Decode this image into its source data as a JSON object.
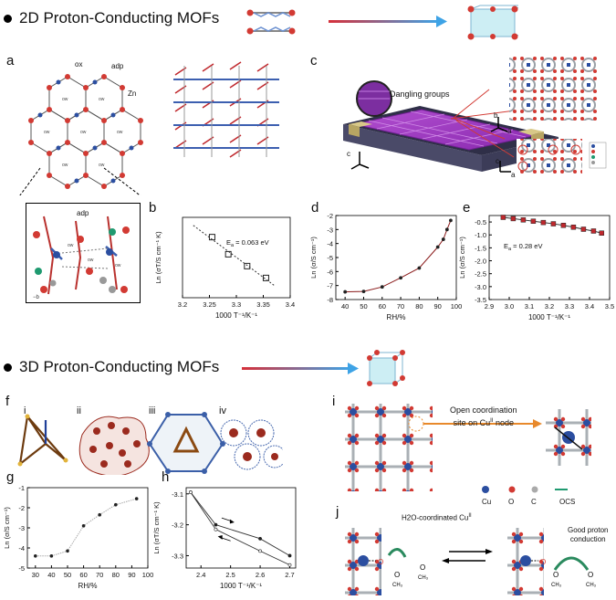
{
  "headers": {
    "h2d": "2D Proton-Conducting MOFs",
    "h3d": "3D Proton-Conducting MOFs"
  },
  "panel_labels": [
    "a",
    "b",
    "c",
    "d",
    "e",
    "f",
    "g",
    "h",
    "i",
    "j"
  ],
  "subpanel_labels_f": [
    "i",
    "ii",
    "iii",
    "iv"
  ],
  "annotations": {
    "ox": "ox",
    "adp_top": "adp",
    "zn": "Zn",
    "adp_inset": "adp",
    "dangling": "Dangling groups",
    "ocs_text_1": "Open coordination",
    "ocs_text_2": "site on Cu",
    "ocs_sup": "II",
    "ocs_text_3": " node",
    "h2o_coord": "H2O-coordinated Cu",
    "h2o_sup": "II",
    "good_1": "Good proton",
    "good_2": "conduction",
    "legend_cu": "Cu",
    "legend_o": "O",
    "legend_c": "C",
    "legend_ocs": "OCS",
    "axis_c": "c",
    "axis_a": "a",
    "axis_b": "b"
  },
  "colors": {
    "gradient_start": "#d6303a",
    "gradient_end": "#3ea3e6",
    "marker_red": "#c0282d",
    "mof_purple": "#a23cc0"
  },
  "chart_data": [
    {
      "id": "b",
      "type": "scatter",
      "x": [
        3.255,
        3.285,
        3.32,
        3.355
      ],
      "y": [
        0.68,
        0.55,
        0.46,
        0.37
      ],
      "annotation": "Ea = 0.063 eV",
      "xlabel": "1000 T⁻¹/K⁻¹",
      "ylabel": "Ln (σT/S cm⁻¹ K)",
      "xlim": [
        3.2,
        3.4
      ],
      "xticks": [
        "3.2",
        "3.25",
        "3.3",
        "3.35",
        "3.4"
      ]
    },
    {
      "id": "d",
      "type": "line",
      "x": [
        40,
        50,
        60,
        70,
        80,
        90,
        93,
        95,
        97
      ],
      "y": [
        -7.45,
        -7.42,
        -7.1,
        -6.45,
        -5.75,
        -4.25,
        -3.7,
        -3.0,
        -2.35
      ],
      "xlabel": "RH/%",
      "ylabel": "Ln (σ/S cm⁻¹)",
      "xlim": [
        35,
        100
      ],
      "ylim": [
        -8,
        -2
      ],
      "xticks": [
        "40",
        "50",
        "60",
        "70",
        "80",
        "90",
        "100"
      ],
      "yticks": [
        "-2",
        "-3",
        "-4",
        "-5",
        "-6",
        "-7",
        "-8"
      ]
    },
    {
      "id": "e",
      "type": "line",
      "x": [
        2.97,
        3.02,
        3.07,
        3.12,
        3.17,
        3.22,
        3.27,
        3.32,
        3.37,
        3.42,
        3.46
      ],
      "y": [
        -0.32,
        -0.37,
        -0.42,
        -0.47,
        -0.52,
        -0.57,
        -0.63,
        -0.7,
        -0.78,
        -0.85,
        -0.93
      ],
      "annotation": "Ea = 0.28 eV",
      "xlabel": "1000 T⁻¹/K⁻¹",
      "ylabel": "Ln (σ/S cm⁻¹)",
      "xlim": [
        2.9,
        3.5
      ],
      "ylim": [
        -3.5,
        -0.25
      ],
      "xticks": [
        "2.9",
        "3.0",
        "3.1",
        "3.2",
        "3.3",
        "3.4",
        "3.5"
      ],
      "yticks": [
        "-0.5",
        "-1.0",
        "-1.5",
        "-2.0",
        "-2.5",
        "-3.0",
        "-3.5"
      ]
    },
    {
      "id": "g",
      "type": "line",
      "x": [
        30,
        40,
        50,
        60,
        70,
        80,
        93
      ],
      "y": [
        -4.4,
        -4.4,
        -4.15,
        -2.9,
        -2.35,
        -1.85,
        -1.55
      ],
      "xlabel": "RH/%",
      "ylabel": "Ln (σ/S cm⁻¹)",
      "xlim": [
        25,
        100
      ],
      "ylim": [
        -5,
        -1
      ],
      "xticks": [
        "30",
        "40",
        "50",
        "60",
        "70",
        "80",
        "90",
        "100"
      ],
      "yticks": [
        "-1",
        "-2",
        "-3",
        "-4",
        "-5"
      ]
    },
    {
      "id": "h",
      "type": "line",
      "series": [
        {
          "x": [
            2.365,
            2.45,
            2.6,
            2.7
          ],
          "y": [
            -3.095,
            -3.2,
            -3.245,
            -3.3
          ]
        },
        {
          "x": [
            2.365,
            2.45,
            2.6,
            2.7
          ],
          "y": [
            -3.095,
            -3.215,
            -3.285,
            -3.33
          ]
        }
      ],
      "xlabel": "1000 T⁻¹/K⁻¹",
      "ylabel": "Ln (σT/S cm⁻¹ K)",
      "xlim": [
        2.35,
        2.72
      ],
      "ylim": [
        -3.34,
        -3.08
      ],
      "xticks": [
        "2.4",
        "2.5",
        "2.6",
        "2.7"
      ],
      "yticks": [
        "-3.1",
        "-3.2",
        "-3.3"
      ]
    }
  ]
}
